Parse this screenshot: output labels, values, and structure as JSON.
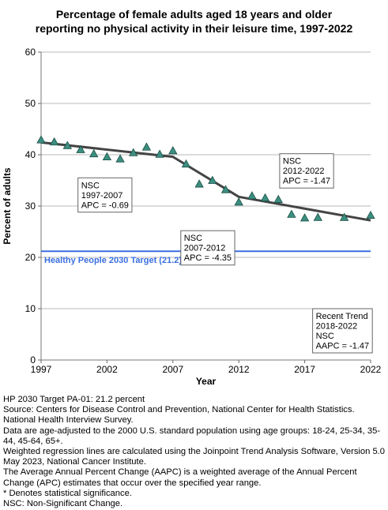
{
  "chart_data": {
    "type": "scatter",
    "title_lines": [
      "Percentage of female adults aged 18 years and older",
      "reporting no physical activity in their leisure time, 1997-2022"
    ],
    "xlabel": "Year",
    "ylabel": "Percent of adults",
    "xlim": [
      1997,
      2022
    ],
    "ylim": [
      0,
      60
    ],
    "xticks": [
      1997,
      2002,
      2007,
      2012,
      2017,
      2022
    ],
    "yticks": [
      0,
      10,
      20,
      30,
      40,
      50,
      60
    ],
    "grid": true,
    "points": {
      "x": [
        1997,
        1998,
        1999,
        2000,
        2001,
        2002,
        2003,
        2004,
        2005,
        2006,
        2007,
        2008,
        2009,
        2010,
        2011,
        2012,
        2013,
        2014,
        2015,
        2016,
        2017,
        2018,
        2020,
        2022
      ],
      "y": [
        42.9,
        42.5,
        41.8,
        41.0,
        40.2,
        39.6,
        39.2,
        40.4,
        41.5,
        40.1,
        40.8,
        38.2,
        34.3,
        35.0,
        33.2,
        30.8,
        32.0,
        31.6,
        31.3,
        28.4,
        27.7,
        27.8,
        27.8,
        28.2
      ],
      "color": "#3c8f80"
    },
    "trend_line": {
      "x": [
        1997,
        2007,
        2012,
        2022
      ],
      "y": [
        42.4,
        39.6,
        31.8,
        27.2
      ],
      "color": "#444444"
    },
    "target": {
      "value": 21.2,
      "label": "Healthy People 2030 Target (21.2)",
      "color": "#3a6fe0"
    },
    "annotations": [
      {
        "lines": [
          "NSC",
          "1997-2007",
          "APC = -0.69"
        ]
      },
      {
        "lines": [
          "NSC",
          "2007-2012",
          "APC = -4.35"
        ]
      },
      {
        "lines": [
          "NSC",
          "2012-2022",
          "APC = -1.47"
        ]
      },
      {
        "lines": [
          "Recent Trend",
          "2018-2022",
          "NSC",
          "AAPC = -1.47"
        ]
      }
    ]
  },
  "notes": [
    "HP 2030 Target PA-01: 21.2 percent",
    "Source: Centers for Disease Control and Prevention, National Center for Health Statistics. National Health Interview Survey.",
    "Data are age-adjusted to the 2000 U.S. standard population using age groups: 18-24, 25-34, 35-44, 45-64, 65+.",
    "Weighted regression lines are calculated using the Joinpoint Trend Analysis Software, Version 5.0 May 2023, National Cancer Institute.",
    "The Average Annual Percent Change (AAPC) is a weighted average of the Annual Percent Change (APC) estimates that occur over the specified year range.",
    "* Denotes statistical significance.",
    "NSC: Non-Significant Change."
  ]
}
